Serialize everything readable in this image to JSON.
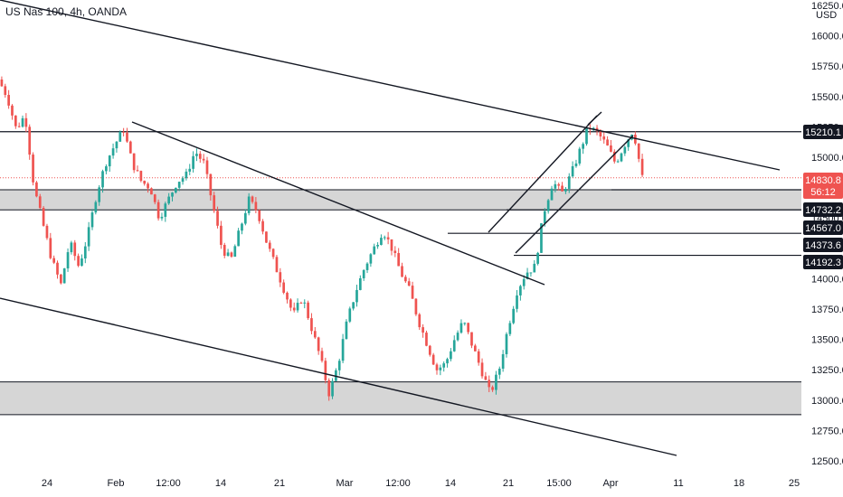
{
  "header": {
    "title": "US Nas 100, 4h, OANDA"
  },
  "axis": {
    "currency": "USD",
    "y_ticks": [
      "16250.0",
      "16000.0",
      "15750.0",
      "15500.0",
      "15250.0",
      "15000.0",
      "14750.0",
      "14500.0",
      "14250.0",
      "14000.0",
      "13750.0",
      "13500.0",
      "13250.0",
      "13000.0",
      "12750.0",
      "12500.0"
    ],
    "y_tick_values": [
      16250,
      16000,
      15750,
      15500,
      15250,
      15000,
      14750,
      14500,
      14250,
      14000,
      13750,
      13500,
      13250,
      13000,
      12750,
      12500
    ],
    "x_ticks": [
      "24",
      "Feb",
      "12:00",
      "14",
      "21",
      "Mar",
      "12:00",
      "14",
      "21",
      "15:00",
      "Apr",
      "11",
      "18",
      "25"
    ]
  },
  "price_labels": [
    {
      "value": "15210.1",
      "kind": "level"
    },
    {
      "value": "14830.8",
      "kind": "current"
    },
    {
      "value": "56:12",
      "kind": "countdown"
    },
    {
      "value": "14732.2",
      "kind": "level"
    },
    {
      "value": "14567.0",
      "kind": "level"
    },
    {
      "value": "14373.6",
      "kind": "level"
    },
    {
      "value": "14192.3",
      "kind": "level"
    }
  ],
  "colors": {
    "up": "#26a69a",
    "down": "#ef5350",
    "zone": "#d1d1d1",
    "line": "#131722",
    "current": "#ef5350"
  },
  "chart_data": {
    "type": "candlestick",
    "title": "US Nas 100, 4h, OANDA",
    "ylabel": "USD",
    "ylim": [
      12480,
      16280
    ],
    "grid": false,
    "legend": "none",
    "current_price": 14830.8,
    "horizontal_levels": [
      15210.1,
      14732.2,
      14567.0,
      14373.6,
      14192.3
    ],
    "zones": [
      {
        "from": 14567.0,
        "to": 14732.2
      },
      {
        "from": 12880,
        "to": 13150
      }
    ],
    "closes_sampled": [
      15640,
      15500,
      15230,
      15350,
      14750,
      14450,
      14150,
      13950,
      14300,
      14100,
      14350,
      14700,
      14950,
      15100,
      15230,
      14950,
      14800,
      14750,
      14500,
      14650,
      14800,
      14850,
      15050,
      14950,
      14600,
      14250,
      14150,
      14400,
      14650,
      14550,
      14300,
      14100,
      13900,
      13700,
      13850,
      13600,
      13350,
      13050,
      13300,
      13650,
      13900,
      14100,
      14250,
      14400,
      14250,
      14050,
      13900,
      13650,
      13450,
      13250,
      13300,
      13500,
      13650,
      13450,
      13250,
      13050,
      13250,
      13600,
      13900,
      14050,
      14100,
      14550,
      14800,
      14700,
      14850,
      15050,
      15250,
      15200,
      15100,
      14950,
      15100,
      15230,
      14830
    ]
  }
}
